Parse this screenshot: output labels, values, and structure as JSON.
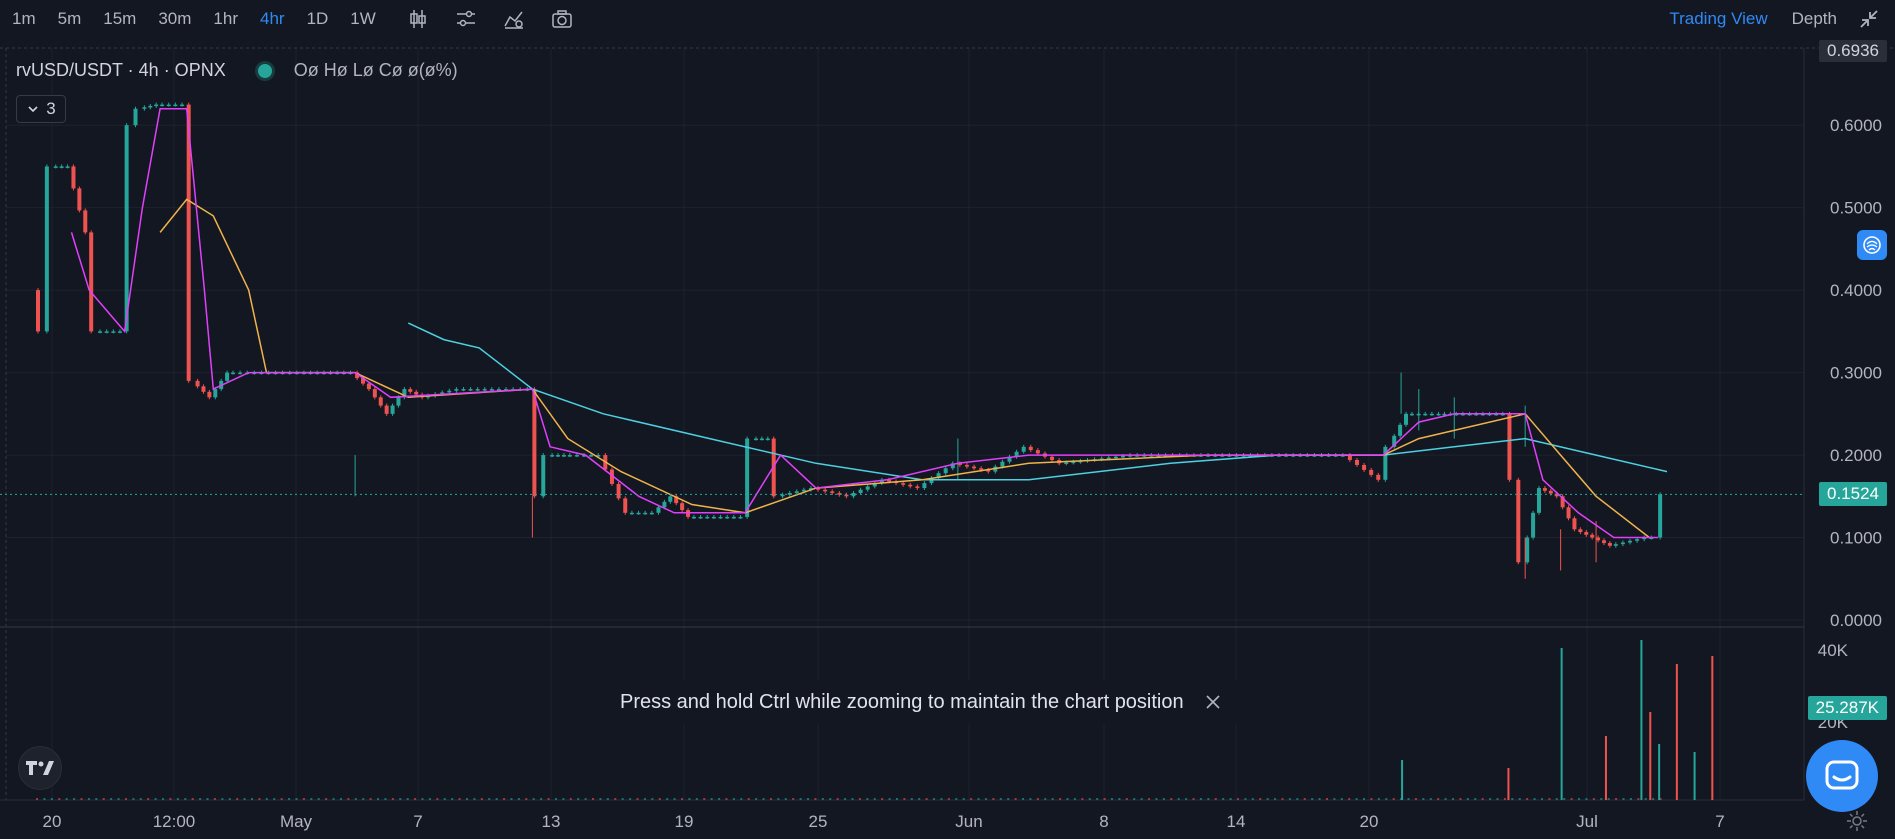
{
  "toolbar": {
    "timeframes": [
      "1m",
      "5m",
      "15m",
      "30m",
      "1hr",
      "4hr",
      "1D",
      "1W"
    ],
    "active_timeframe": "4hr",
    "tools": [
      "candlestick-icon",
      "indicator-settings-icon",
      "indicators-icon",
      "camera-icon"
    ],
    "right_tabs": [
      "Trading View",
      "Depth"
    ],
    "active_right_tab": "Trading View"
  },
  "legend": {
    "symbol": "rvUSD/USDT · 4h · OPNX",
    "ohlc": "Oø Hø Lø Cø ø(ø%)",
    "indicator_count": "3"
  },
  "price_axis": {
    "ticks": [
      "0.6000",
      "0.5000",
      "0.4000",
      "0.3000",
      "0.2000",
      "0.1000",
      "0.0000"
    ],
    "top_label": "0.6936",
    "current_price": "0.1524",
    "current_color": "#26a69a"
  },
  "volume_axis": {
    "ticks": [
      "40K",
      "20K"
    ],
    "current_volume": "25.287K"
  },
  "time_axis": {
    "labels": [
      "20",
      "12:00",
      "May",
      "7",
      "13",
      "19",
      "25",
      "Jun",
      "8",
      "14",
      "20",
      "Jul",
      "7"
    ]
  },
  "toast": {
    "message": "Press and hold Ctrl while zooming to maintain the chart position"
  },
  "colors": {
    "up": "#26a69a",
    "down": "#ef5350",
    "ma_fast": "#e040fb",
    "ma_mid": "#f0b34a",
    "ma_slow": "#4dd0e1",
    "accent": "#2f8af5"
  },
  "chart_data": {
    "type": "candlestick",
    "pair": "rvUSD/USDT",
    "interval": "4h",
    "exchange": "OPNX",
    "ylim": [
      0,
      0.6936
    ],
    "path_points": [
      [
        0.0,
        0.4
      ],
      [
        0.005,
        0.35
      ],
      [
        0.01,
        0.55
      ],
      [
        0.02,
        0.55
      ],
      [
        0.03,
        0.47
      ],
      [
        0.035,
        0.35
      ],
      [
        0.05,
        0.35
      ],
      [
        0.055,
        0.6
      ],
      [
        0.06,
        0.62
      ],
      [
        0.07,
        0.625
      ],
      [
        0.085,
        0.625
      ],
      [
        0.09,
        0.29
      ],
      [
        0.1,
        0.27
      ],
      [
        0.11,
        0.3
      ],
      [
        0.15,
        0.3
      ],
      [
        0.18,
        0.3
      ],
      [
        0.19,
        0.28
      ],
      [
        0.2,
        0.25
      ],
      [
        0.21,
        0.28
      ],
      [
        0.22,
        0.27
      ],
      [
        0.24,
        0.28
      ],
      [
        0.28,
        0.28
      ],
      [
        0.285,
        0.15
      ],
      [
        0.29,
        0.2
      ],
      [
        0.3,
        0.2
      ],
      [
        0.32,
        0.2
      ],
      [
        0.335,
        0.13
      ],
      [
        0.35,
        0.13
      ],
      [
        0.36,
        0.15
      ],
      [
        0.37,
        0.125
      ],
      [
        0.4,
        0.125
      ],
      [
        0.405,
        0.22
      ],
      [
        0.415,
        0.22
      ],
      [
        0.42,
        0.15
      ],
      [
        0.44,
        0.16
      ],
      [
        0.46,
        0.15
      ],
      [
        0.48,
        0.17
      ],
      [
        0.5,
        0.16
      ],
      [
        0.52,
        0.19
      ],
      [
        0.54,
        0.18
      ],
      [
        0.56,
        0.21
      ],
      [
        0.58,
        0.19
      ],
      [
        0.62,
        0.2
      ],
      [
        0.66,
        0.2
      ],
      [
        0.7,
        0.2
      ],
      [
        0.74,
        0.2
      ],
      [
        0.76,
        0.17
      ],
      [
        0.765,
        0.21
      ],
      [
        0.775,
        0.25
      ],
      [
        0.79,
        0.25
      ],
      [
        0.8,
        0.25
      ],
      [
        0.83,
        0.25
      ],
      [
        0.835,
        0.17
      ],
      [
        0.84,
        0.07
      ],
      [
        0.85,
        0.16
      ],
      [
        0.86,
        0.15
      ],
      [
        0.87,
        0.11
      ],
      [
        0.88,
        0.1
      ],
      [
        0.89,
        0.09
      ],
      [
        0.91,
        0.1
      ],
      [
        0.915,
        0.1
      ],
      [
        0.92,
        0.1524
      ]
    ],
    "ma_fast": [
      [
        0.02,
        0.47
      ],
      [
        0.03,
        0.4
      ],
      [
        0.05,
        0.35
      ],
      [
        0.06,
        0.5
      ],
      [
        0.07,
        0.62
      ],
      [
        0.085,
        0.62
      ],
      [
        0.095,
        0.4
      ],
      [
        0.1,
        0.28
      ],
      [
        0.12,
        0.3
      ],
      [
        0.18,
        0.3
      ],
      [
        0.2,
        0.27
      ],
      [
        0.28,
        0.28
      ],
      [
        0.29,
        0.21
      ],
      [
        0.31,
        0.2
      ],
      [
        0.34,
        0.15
      ],
      [
        0.36,
        0.13
      ],
      [
        0.4,
        0.13
      ],
      [
        0.42,
        0.2
      ],
      [
        0.44,
        0.16
      ],
      [
        0.48,
        0.17
      ],
      [
        0.52,
        0.19
      ],
      [
        0.56,
        0.2
      ],
      [
        0.62,
        0.2
      ],
      [
        0.76,
        0.2
      ],
      [
        0.78,
        0.24
      ],
      [
        0.8,
        0.25
      ],
      [
        0.84,
        0.25
      ],
      [
        0.85,
        0.17
      ],
      [
        0.87,
        0.13
      ],
      [
        0.89,
        0.1
      ],
      [
        0.915,
        0.1
      ]
    ],
    "ma_mid": [
      [
        0.07,
        0.47
      ],
      [
        0.085,
        0.51
      ],
      [
        0.1,
        0.49
      ],
      [
        0.12,
        0.4
      ],
      [
        0.13,
        0.3
      ],
      [
        0.18,
        0.3
      ],
      [
        0.21,
        0.27
      ],
      [
        0.28,
        0.28
      ],
      [
        0.3,
        0.22
      ],
      [
        0.33,
        0.18
      ],
      [
        0.37,
        0.14
      ],
      [
        0.4,
        0.13
      ],
      [
        0.44,
        0.16
      ],
      [
        0.5,
        0.17
      ],
      [
        0.56,
        0.19
      ],
      [
        0.66,
        0.2
      ],
      [
        0.76,
        0.2
      ],
      [
        0.78,
        0.22
      ],
      [
        0.84,
        0.25
      ],
      [
        0.86,
        0.2
      ],
      [
        0.88,
        0.15
      ],
      [
        0.91,
        0.1
      ]
    ],
    "ma_slow": [
      [
        0.21,
        0.36
      ],
      [
        0.23,
        0.34
      ],
      [
        0.25,
        0.33
      ],
      [
        0.28,
        0.28
      ],
      [
        0.32,
        0.25
      ],
      [
        0.38,
        0.22
      ],
      [
        0.44,
        0.19
      ],
      [
        0.5,
        0.17
      ],
      [
        0.56,
        0.17
      ],
      [
        0.64,
        0.19
      ],
      [
        0.7,
        0.2
      ],
      [
        0.76,
        0.2
      ],
      [
        0.8,
        0.21
      ],
      [
        0.84,
        0.22
      ],
      [
        0.88,
        0.2
      ],
      [
        0.92,
        0.18
      ]
    ],
    "volume_bars": [
      [
        0.77,
        0.25
      ],
      [
        0.83,
        0.2
      ],
      [
        0.86,
        0.95
      ],
      [
        0.885,
        0.4
      ],
      [
        0.905,
        1.0
      ],
      [
        0.91,
        0.55
      ],
      [
        0.915,
        0.35
      ],
      [
        0.925,
        0.85
      ],
      [
        0.935,
        0.3
      ],
      [
        0.945,
        0.9
      ]
    ]
  }
}
